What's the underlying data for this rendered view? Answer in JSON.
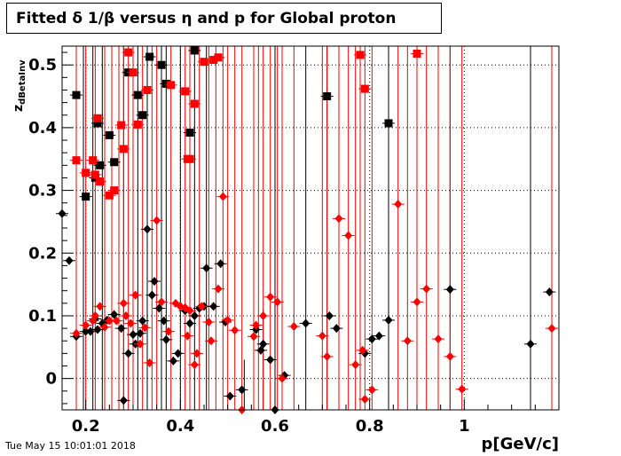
{
  "chart_data": {
    "type": "scatter",
    "title_parts": [
      "Fitted ",
      "δ",
      " 1/",
      "β",
      " versus ",
      "η",
      " and p for Global proton"
    ],
    "xlabel": "p[GeV/c]",
    "ylabel_main": "z",
    "ylabel_sub": "dBetaInv",
    "xlim": [
      0.15,
      1.2
    ],
    "ylim": [
      -0.05,
      0.53
    ],
    "x_ticks": [
      0.2,
      0.4,
      0.6,
      0.8,
      1
    ],
    "x_tick_labels": [
      "0.2",
      "0.4",
      "0.6",
      "0.8",
      "1"
    ],
    "y_ticks": [
      0,
      0.1,
      0.2,
      0.3,
      0.4,
      0.5
    ],
    "y_tick_labels": [
      "0",
      "0.1",
      "0.2",
      "0.3",
      "0.4",
      "0.5"
    ],
    "grid": true,
    "colors": {
      "black": "#000000",
      "red": "#ff0000"
    },
    "series": [
      {
        "color": "black",
        "marker": "square",
        "points": [
          [
            0.18,
            0.452
          ],
          [
            0.2,
            0.29
          ],
          [
            0.22,
            0.32
          ],
          [
            0.225,
            0.407
          ],
          [
            0.23,
            0.34
          ],
          [
            0.25,
            0.388
          ],
          [
            0.26,
            0.345
          ],
          [
            0.29,
            0.488
          ],
          [
            0.31,
            0.452
          ],
          [
            0.32,
            0.42
          ],
          [
            0.335,
            0.513
          ],
          [
            0.36,
            0.5
          ],
          [
            0.37,
            0.47
          ],
          [
            0.42,
            0.392
          ],
          [
            0.43,
            0.523
          ],
          [
            0.71,
            0.45
          ],
          [
            0.84,
            0.407
          ]
        ]
      },
      {
        "color": "red",
        "marker": "square",
        "points": [
          [
            0.18,
            0.348
          ],
          [
            0.2,
            0.328
          ],
          [
            0.215,
            0.348
          ],
          [
            0.22,
            0.325
          ],
          [
            0.225,
            0.415
          ],
          [
            0.23,
            0.314
          ],
          [
            0.25,
            0.292
          ],
          [
            0.26,
            0.3
          ],
          [
            0.275,
            0.404
          ],
          [
            0.28,
            0.366
          ],
          [
            0.29,
            0.52
          ],
          [
            0.3,
            0.488
          ],
          [
            0.31,
            0.405
          ],
          [
            0.33,
            0.46
          ],
          [
            0.38,
            0.468
          ],
          [
            0.41,
            0.458
          ],
          [
            0.415,
            0.35
          ],
          [
            0.42,
            0.35
          ],
          [
            0.43,
            0.438
          ],
          [
            0.45,
            0.505
          ],
          [
            0.47,
            0.508
          ],
          [
            0.48,
            0.512
          ],
          [
            0.78,
            0.516
          ],
          [
            0.79,
            0.462
          ],
          [
            0.9,
            0.518
          ]
        ]
      },
      {
        "color": "black",
        "marker": "diamond",
        "points": [
          [
            0.15,
            0.263
          ],
          [
            0.165,
            0.188
          ],
          [
            0.18,
            0.067
          ],
          [
            0.2,
            0.075
          ],
          [
            0.21,
            0.075
          ],
          [
            0.22,
            0.095
          ],
          [
            0.225,
            0.078
          ],
          [
            0.235,
            0.088
          ],
          [
            0.245,
            0.093
          ],
          [
            0.26,
            0.102
          ],
          [
            0.275,
            0.08
          ],
          [
            0.28,
            -0.035
          ],
          [
            0.29,
            0.04
          ],
          [
            0.3,
            0.07
          ],
          [
            0.305,
            0.055
          ],
          [
            0.315,
            0.072
          ],
          [
            0.32,
            0.092
          ],
          [
            0.33,
            0.238
          ],
          [
            0.34,
            0.133
          ],
          [
            0.345,
            0.155
          ],
          [
            0.355,
            0.112
          ],
          [
            0.365,
            0.092
          ],
          [
            0.37,
            0.062
          ],
          [
            0.385,
            0.028
          ],
          [
            0.395,
            0.04
          ],
          [
            0.41,
            0.108
          ],
          [
            0.42,
            0.088
          ],
          [
            0.43,
            0.1
          ],
          [
            0.44,
            0.112
          ],
          [
            0.45,
            0.115
          ],
          [
            0.455,
            0.176
          ],
          [
            0.47,
            0.115
          ],
          [
            0.485,
            0.183
          ],
          [
            0.495,
            0.09
          ],
          [
            0.505,
            -0.028
          ],
          [
            0.53,
            -0.018
          ],
          [
            0.56,
            0.078
          ],
          [
            0.57,
            0.045
          ],
          [
            0.575,
            0.055
          ],
          [
            0.59,
            0.03
          ],
          [
            0.6,
            -0.05
          ],
          [
            0.62,
            0.005
          ],
          [
            0.665,
            0.088
          ],
          [
            0.715,
            0.1
          ],
          [
            0.73,
            0.08
          ],
          [
            0.79,
            0.04
          ],
          [
            0.805,
            0.063
          ],
          [
            0.82,
            0.068
          ],
          [
            0.84,
            0.093
          ],
          [
            0.97,
            0.142
          ],
          [
            1.14,
            0.055
          ],
          [
            1.18,
            0.138
          ]
        ]
      },
      {
        "color": "red",
        "marker": "diamond",
        "points": [
          [
            0.18,
            0.072
          ],
          [
            0.2,
            0.085
          ],
          [
            0.215,
            0.092
          ],
          [
            0.22,
            0.1
          ],
          [
            0.23,
            0.115
          ],
          [
            0.24,
            0.082
          ],
          [
            0.25,
            0.092
          ],
          [
            0.265,
            0.092
          ],
          [
            0.28,
            0.12
          ],
          [
            0.285,
            0.1
          ],
          [
            0.295,
            0.088
          ],
          [
            0.305,
            0.133
          ],
          [
            0.315,
            0.055
          ],
          [
            0.325,
            0.081
          ],
          [
            0.335,
            0.025
          ],
          [
            0.35,
            0.252
          ],
          [
            0.36,
            0.122
          ],
          [
            0.375,
            0.075
          ],
          [
            0.39,
            0.12
          ],
          [
            0.4,
            0.115
          ],
          [
            0.41,
            0.113
          ],
          [
            0.415,
            0.068
          ],
          [
            0.42,
            0.108
          ],
          [
            0.43,
            0.022
          ],
          [
            0.435,
            0.04
          ],
          [
            0.445,
            0.115
          ],
          [
            0.46,
            0.09
          ],
          [
            0.465,
            0.06
          ],
          [
            0.48,
            0.143
          ],
          [
            0.49,
            0.29
          ],
          [
            0.5,
            0.093
          ],
          [
            0.515,
            0.077
          ],
          [
            0.53,
            -0.05
          ],
          [
            0.555,
            0.067
          ],
          [
            0.56,
            0.085
          ],
          [
            0.575,
            0.1
          ],
          [
            0.59,
            0.13
          ],
          [
            0.605,
            0.122
          ],
          [
            0.615,
            0.0
          ],
          [
            0.64,
            0.083
          ],
          [
            0.7,
            0.068
          ],
          [
            0.71,
            0.035
          ],
          [
            0.735,
            0.255
          ],
          [
            0.755,
            0.228
          ],
          [
            0.77,
            0.022
          ],
          [
            0.785,
            0.045
          ],
          [
            0.79,
            -0.033
          ],
          [
            0.805,
            -0.018
          ],
          [
            0.86,
            0.278
          ],
          [
            0.88,
            0.06
          ],
          [
            0.9,
            0.122
          ],
          [
            0.92,
            0.143
          ],
          [
            0.945,
            0.063
          ],
          [
            0.97,
            0.035
          ],
          [
            0.995,
            -0.017
          ],
          [
            1.185,
            0.08
          ]
        ]
      }
    ],
    "error_bars": {
      "black": [
        [
          0.195,
          -0.05,
          0.53
        ],
        [
          0.215,
          -0.05,
          0.53
        ],
        [
          0.235,
          -0.05,
          0.53
        ],
        [
          0.28,
          -0.05,
          0.53
        ],
        [
          0.31,
          -0.05,
          0.53
        ],
        [
          0.33,
          -0.05,
          0.53
        ],
        [
          0.36,
          -0.05,
          0.53
        ],
        [
          0.37,
          -0.05,
          0.53
        ],
        [
          0.4,
          -0.05,
          0.53
        ],
        [
          0.43,
          -0.05,
          0.53
        ],
        [
          0.455,
          -0.05,
          0.53
        ],
        [
          0.535,
          -0.05,
          0.03
        ],
        [
          0.575,
          -0.05,
          0.11
        ],
        [
          0.6,
          -0.05,
          0.53
        ],
        [
          0.665,
          -0.05,
          0.53
        ],
        [
          0.71,
          -0.05,
          0.53
        ],
        [
          0.84,
          -0.05,
          0.53
        ],
        [
          0.97,
          -0.05,
          0.53
        ],
        [
          1.14,
          -0.05,
          0.53
        ],
        [
          1.185,
          -0.05,
          0.53
        ]
      ],
      "red": [
        [
          0.18,
          -0.05,
          0.53
        ],
        [
          0.2,
          -0.05,
          0.53
        ],
        [
          0.22,
          -0.05,
          0.53
        ],
        [
          0.24,
          -0.05,
          0.53
        ],
        [
          0.255,
          -0.05,
          0.53
        ],
        [
          0.27,
          -0.05,
          0.53
        ],
        [
          0.28,
          -0.05,
          0.53
        ],
        [
          0.29,
          -0.05,
          0.53
        ],
        [
          0.3,
          -0.05,
          0.53
        ],
        [
          0.32,
          -0.05,
          0.53
        ],
        [
          0.34,
          -0.05,
          0.53
        ],
        [
          0.35,
          -0.05,
          0.53
        ],
        [
          0.38,
          -0.05,
          0.53
        ],
        [
          0.41,
          -0.05,
          0.53
        ],
        [
          0.42,
          -0.05,
          0.53
        ],
        [
          0.44,
          -0.05,
          0.53
        ],
        [
          0.46,
          -0.05,
          0.53
        ],
        [
          0.475,
          -0.05,
          0.53
        ],
        [
          0.49,
          -0.05,
          0.53
        ],
        [
          0.5,
          -0.05,
          0.53
        ],
        [
          0.515,
          -0.05,
          0.53
        ],
        [
          0.53,
          -0.05,
          0.53
        ],
        [
          0.555,
          -0.05,
          0.53
        ],
        [
          0.565,
          -0.05,
          0.53
        ],
        [
          0.575,
          -0.05,
          0.53
        ],
        [
          0.59,
          -0.05,
          0.53
        ],
        [
          0.605,
          -0.05,
          0.53
        ],
        [
          0.615,
          -0.05,
          0.53
        ],
        [
          0.64,
          -0.05,
          0.53
        ],
        [
          0.7,
          -0.05,
          0.53
        ],
        [
          0.71,
          -0.05,
          0.53
        ],
        [
          0.735,
          -0.05,
          0.53
        ],
        [
          0.755,
          -0.05,
          0.53
        ],
        [
          0.77,
          -0.05,
          0.53
        ],
        [
          0.78,
          -0.05,
          0.53
        ],
        [
          0.79,
          -0.05,
          0.53
        ],
        [
          0.805,
          -0.05,
          0.53
        ],
        [
          0.86,
          -0.05,
          0.53
        ],
        [
          0.88,
          -0.05,
          0.53
        ],
        [
          0.9,
          -0.05,
          0.53
        ],
        [
          0.92,
          -0.05,
          0.53
        ],
        [
          0.945,
          -0.05,
          0.53
        ],
        [
          0.97,
          -0.05,
          0.53
        ],
        [
          0.995,
          -0.05,
          0.53
        ],
        [
          1.185,
          -0.05,
          0.53
        ]
      ]
    }
  },
  "footer": {
    "timestamp": "Tue May 15 10:01:01 2018"
  }
}
